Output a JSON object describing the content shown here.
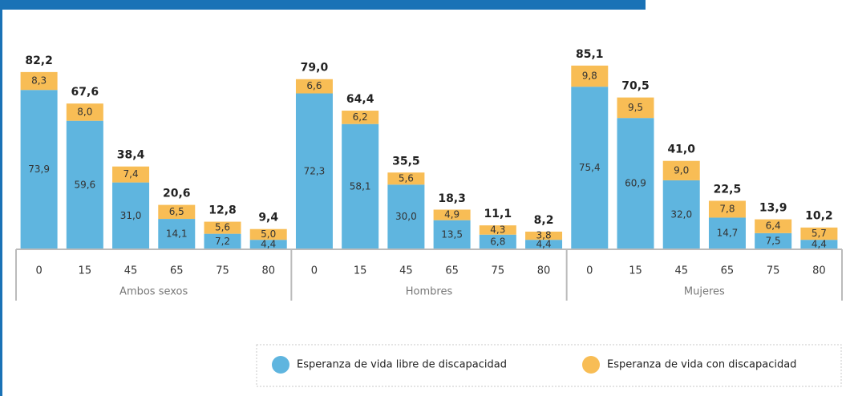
{
  "chart_data": {
    "type": "stacked-bar",
    "groups": [
      "Ambos sexos",
      "Hombres",
      "Mujeres"
    ],
    "categories": [
      "0",
      "15",
      "45",
      "65",
      "75",
      "80",
      "0",
      "15",
      "45",
      "65",
      "75",
      "80",
      "0",
      "15",
      "45",
      "65",
      "75",
      "80"
    ],
    "series": [
      {
        "name": "Esperanza de vida libre de discapacidad",
        "color": "#5fb5df",
        "values": [
          73.9,
          59.6,
          31.0,
          14.1,
          7.2,
          4.4,
          72.3,
          58.1,
          30.0,
          13.5,
          6.8,
          4.4,
          75.4,
          60.9,
          32.0,
          14.7,
          7.5,
          4.4
        ],
        "value_labels": [
          "73,9",
          "59,6",
          "31,0",
          "14,1",
          "7,2",
          "4,4",
          "72,3",
          "58,1",
          "30,0",
          "13,5",
          "6,8",
          "4,4",
          "75,4",
          "60,9",
          "32,0",
          "14,7",
          "7,5",
          "4,4"
        ]
      },
      {
        "name": "Esperanza de vida con discapacidad",
        "color": "#f8bd55",
        "values": [
          8.3,
          8.0,
          7.4,
          6.5,
          5.6,
          5.0,
          6.6,
          6.2,
          5.6,
          4.9,
          4.3,
          3.8,
          9.8,
          9.5,
          9.0,
          7.8,
          6.4,
          5.7
        ],
        "value_labels": [
          "8,3",
          "8,0",
          "7,4",
          "6,5",
          "5,6",
          "5,0",
          "6,6",
          "6,2",
          "5,6",
          "4,9",
          "4,3",
          "3,8",
          "9,8",
          "9,5",
          "9,0",
          "7,8",
          "6,4",
          "5,7"
        ]
      }
    ],
    "totals": [
      82.2,
      67.6,
      38.4,
      20.6,
      12.8,
      9.4,
      79.0,
      64.4,
      35.5,
      18.3,
      11.1,
      8.2,
      85.1,
      70.5,
      41.0,
      22.5,
      13.9,
      10.2
    ],
    "total_labels": [
      "82,2",
      "67,6",
      "38,4",
      "20,6",
      "12,8",
      "9,4",
      "79,0",
      "64,4",
      "35,5",
      "18,3",
      "11,1",
      "8,2",
      "85,1",
      "70,5",
      "41,0",
      "22,5",
      "13,9",
      "10,2"
    ]
  }
}
